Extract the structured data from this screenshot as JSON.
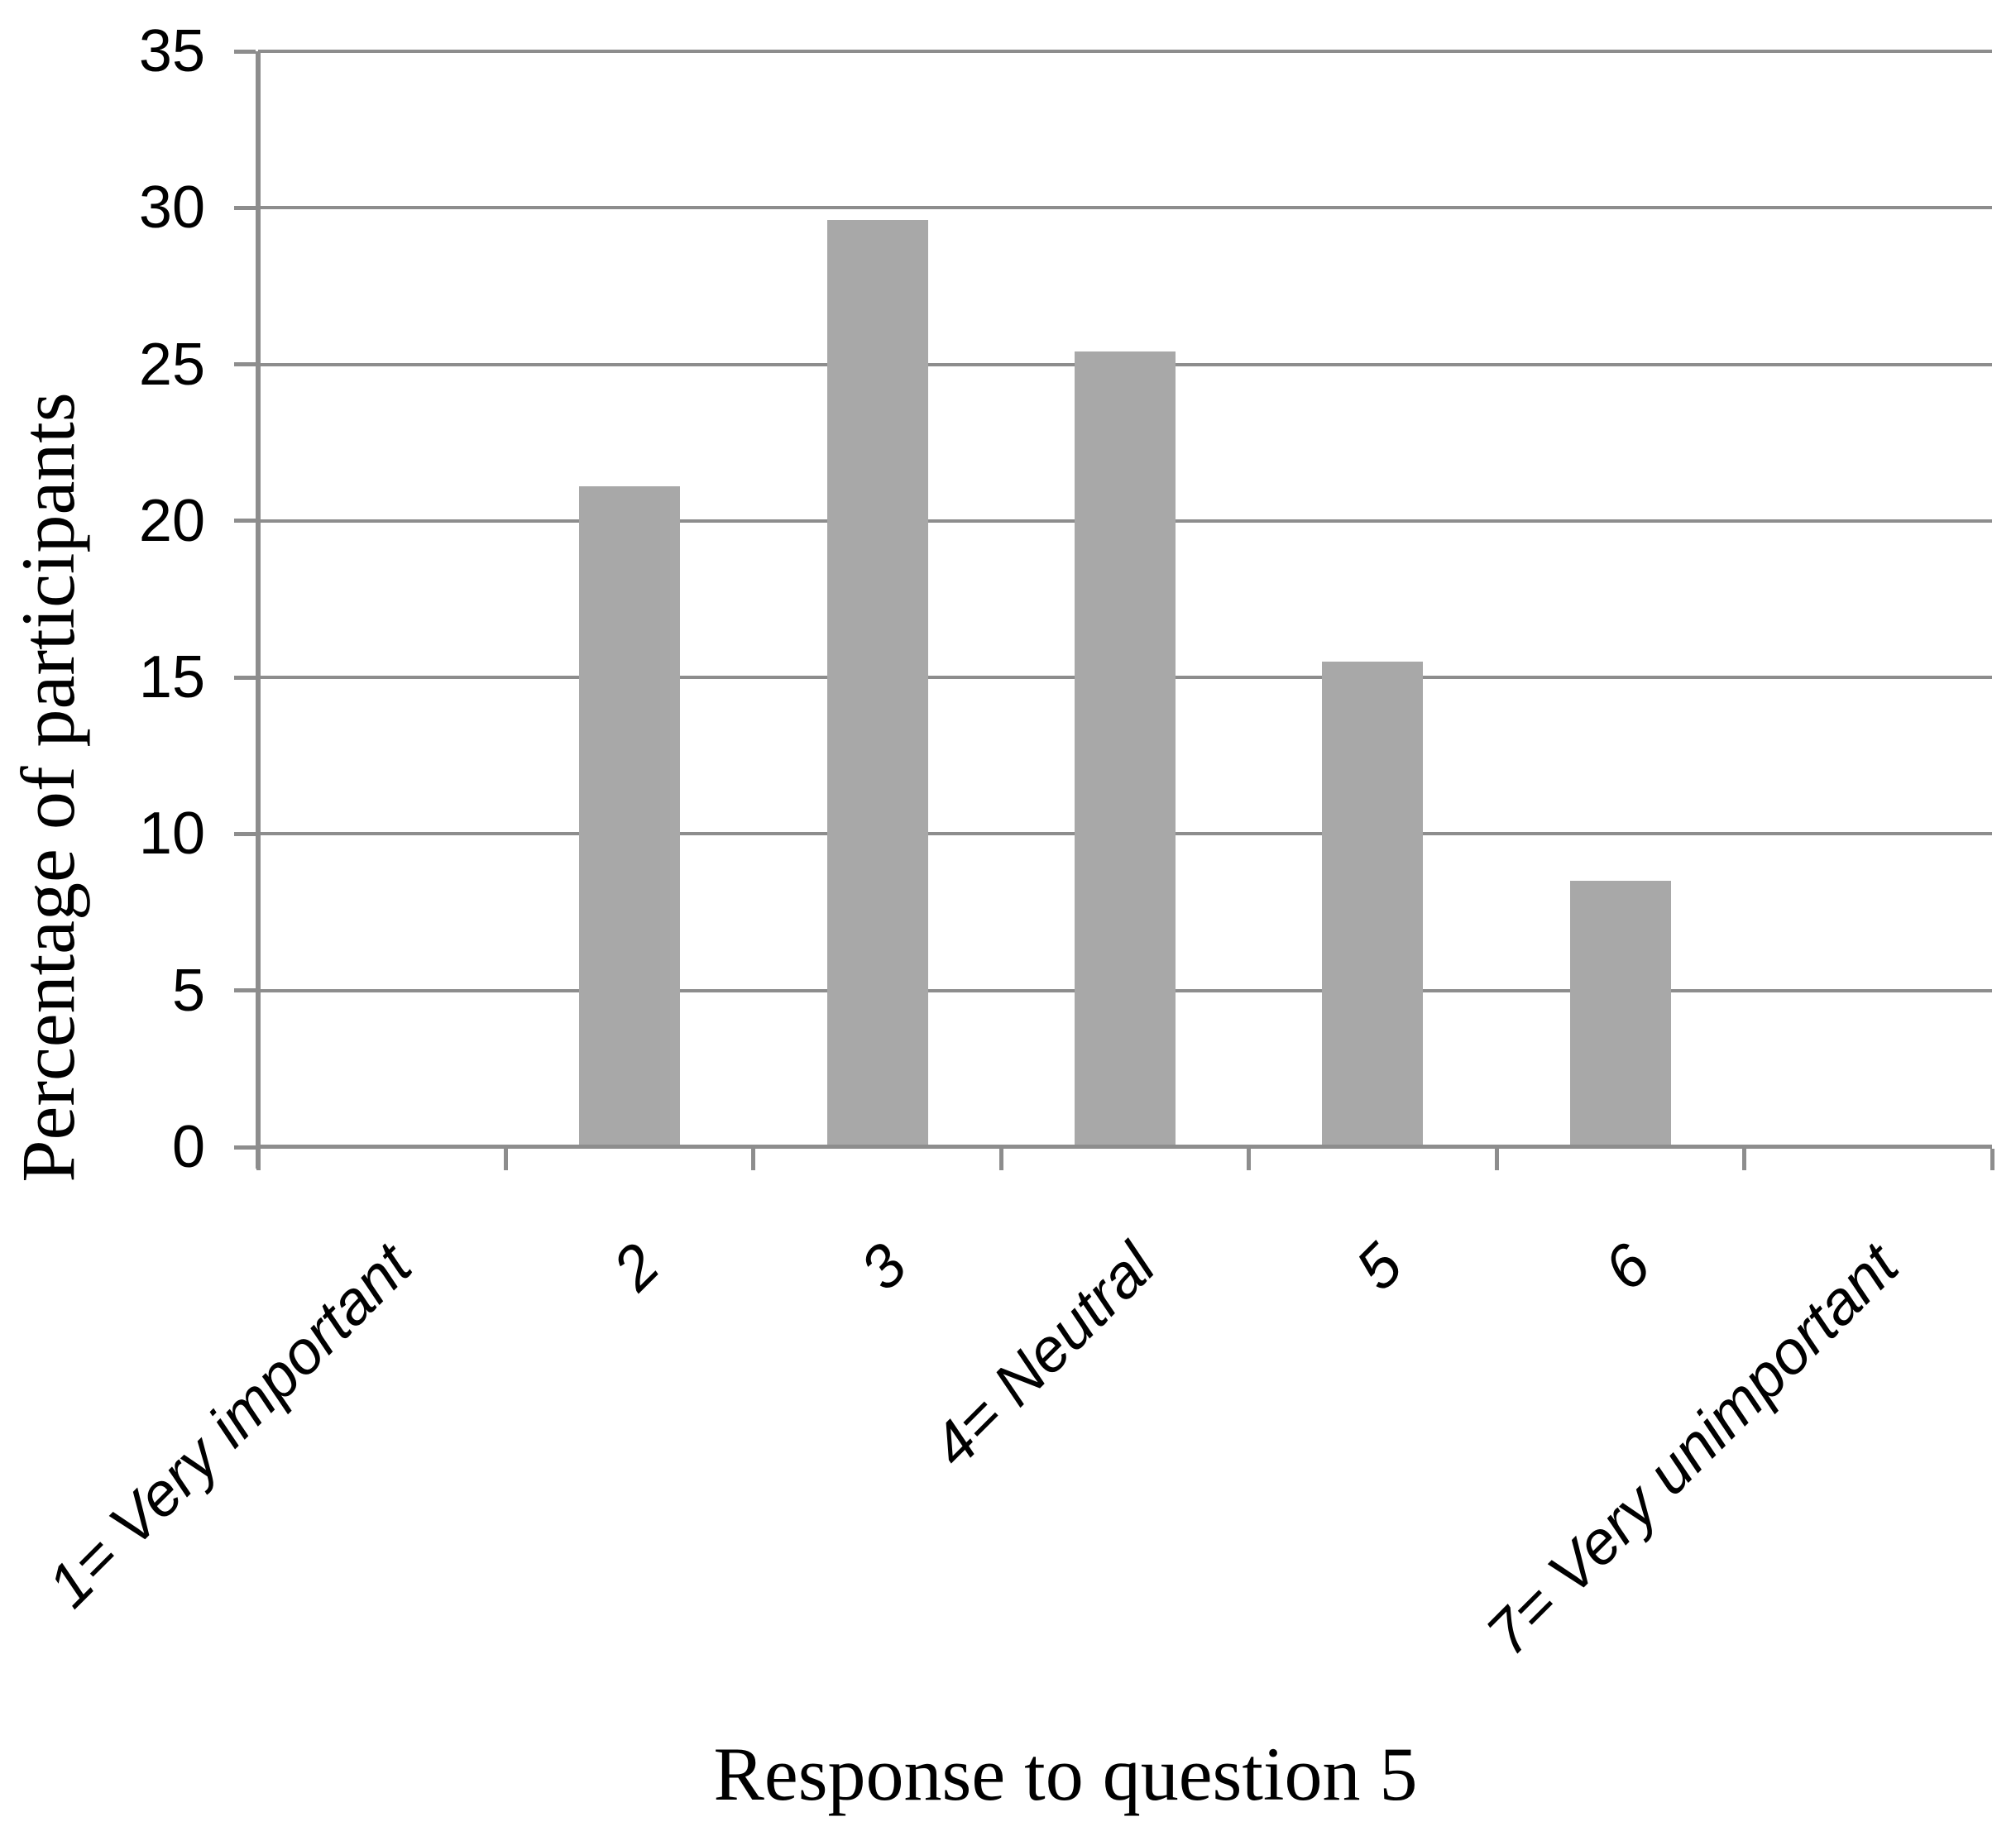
{
  "figure": {
    "background_color": "#ffffff",
    "text_color": "#000000"
  },
  "chart_data": {
    "type": "bar",
    "title": "",
    "categories": [
      "1= Very important",
      "2",
      "3",
      "4= Neutral",
      "5",
      "6",
      "7= Very unimportant"
    ],
    "values": [
      0,
      21.1,
      29.6,
      25.4,
      15.5,
      8.5,
      0
    ],
    "xlabel": "Response to question 5",
    "ylabel": "Percentage of participants",
    "ylim": [
      0,
      35
    ],
    "yticks": [
      0,
      5,
      10,
      15,
      20,
      25,
      30,
      35
    ],
    "grid": true,
    "legend": "none",
    "bar_color": "#a8a8a8",
    "gridline_color": "#8d8d8d",
    "axis_color": "#8d8d8d",
    "x_tick_label_rotation_deg": -45,
    "series_count": 1
  }
}
